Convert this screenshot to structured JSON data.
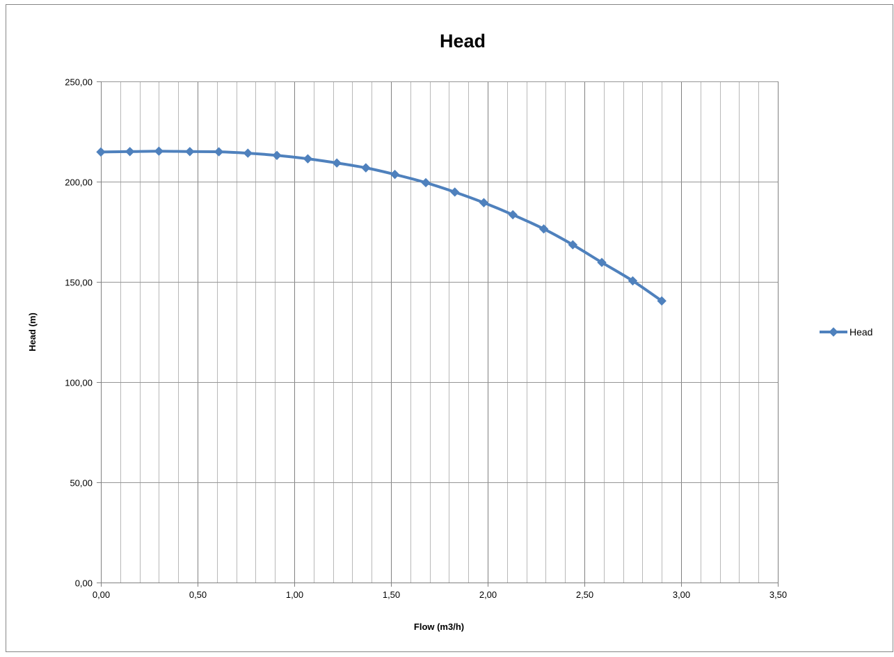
{
  "chart_data": {
    "type": "line",
    "title": "Head",
    "xlabel": "Flow (m3/h)",
    "ylabel": "Head (m)",
    "xlim": [
      0,
      3.5
    ],
    "ylim": [
      0,
      250
    ],
    "x_major_step": 0.5,
    "x_minor_step": 0.1,
    "y_major_step": 50,
    "grid": true,
    "legend_position": "right",
    "x_tick_labels": [
      "0,00",
      "0,50",
      "1,00",
      "1,50",
      "2,00",
      "2,50",
      "3,00",
      "3,50"
    ],
    "y_tick_labels": [
      "0,00",
      "50,00",
      "100,00",
      "150,00",
      "200,00",
      "250,00"
    ],
    "series": [
      {
        "name": "Head",
        "color": "#4f81bd",
        "marker": "diamond",
        "x": [
          0.0,
          0.15,
          0.3,
          0.46,
          0.61,
          0.76,
          0.91,
          1.07,
          1.22,
          1.37,
          1.52,
          1.68,
          1.83,
          1.98,
          2.13,
          2.29,
          2.44,
          2.59,
          2.75,
          2.9
        ],
        "y": [
          214.8,
          215.0,
          215.2,
          215.0,
          214.9,
          214.2,
          213.1,
          211.4,
          209.3,
          206.9,
          203.6,
          199.5,
          194.8,
          189.5,
          183.5,
          176.4,
          168.5,
          159.7,
          150.5,
          140.5
        ]
      }
    ]
  }
}
